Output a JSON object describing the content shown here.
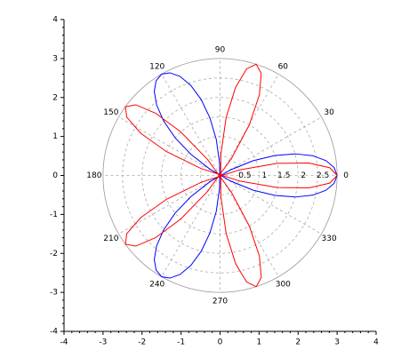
{
  "chart_data": {
    "type": "polar",
    "theta": [
      0,
      4,
      8,
      12,
      16,
      20,
      24,
      28,
      32,
      36,
      40,
      44,
      48,
      52,
      56,
      60,
      64,
      68,
      72,
      76,
      80,
      84,
      88,
      92,
      96,
      100,
      104,
      108,
      112,
      116,
      120,
      124,
      128,
      132,
      136,
      140,
      144,
      148,
      152,
      156,
      160,
      164,
      168,
      172,
      176,
      180
    ],
    "series": [
      {
        "color": "#0000ff",
        "r": [
          3,
          2.93,
          2.74,
          2.43,
          2.01,
          1.5,
          0.93,
          0.31,
          -0.31,
          -0.93,
          -1.5,
          -2.01,
          -2.43,
          -2.74,
          -2.93,
          -3,
          -2.93,
          -2.74,
          -2.43,
          -2.01,
          -1.5,
          -0.93,
          -0.31,
          0.31,
          0.93,
          1.5,
          2.01,
          2.43,
          2.74,
          2.93,
          3,
          2.93,
          2.74,
          2.43,
          2.01,
          1.5,
          0.93,
          0.31,
          -0.31,
          -0.93,
          -1.5,
          -2.01,
          -2.43,
          -2.74,
          -2.93,
          -3
        ]
      },
      {
        "color": "#ff0000",
        "r": [
          3,
          2.82,
          2.3,
          1.5,
          0.52,
          -0.52,
          -1.5,
          -2.3,
          -2.82,
          -3,
          -2.82,
          -2.3,
          -1.5,
          -0.52,
          0.52,
          1.5,
          2.3,
          2.82,
          3,
          2.82,
          2.3,
          1.5,
          0.52,
          -0.52,
          -1.5,
          -2.3,
          -2.82,
          -3,
          -2.82,
          -2.3,
          -1.5,
          -0.52,
          0.52,
          1.5,
          2.3,
          2.82,
          3,
          2.82,
          2.3,
          1.5,
          0.52,
          -0.52,
          -1.5,
          -2.3,
          -2.82,
          -3
        ]
      }
    ],
    "rlim": [
      0,
      3
    ],
    "rticks": [
      0.5,
      1,
      1.5,
      2,
      2.5
    ],
    "thetaticks": [
      0,
      30,
      60,
      90,
      120,
      150,
      180,
      210,
      240,
      270,
      300,
      330
    ],
    "xlim": [
      -4,
      4
    ],
    "xticks": [
      -4,
      -3,
      -2,
      -1,
      0,
      1,
      2,
      3,
      4
    ],
    "ylim": [
      -4,
      4
    ],
    "yticks": [
      -4,
      -3,
      -2,
      -1,
      0,
      1,
      2,
      3,
      4
    ]
  }
}
